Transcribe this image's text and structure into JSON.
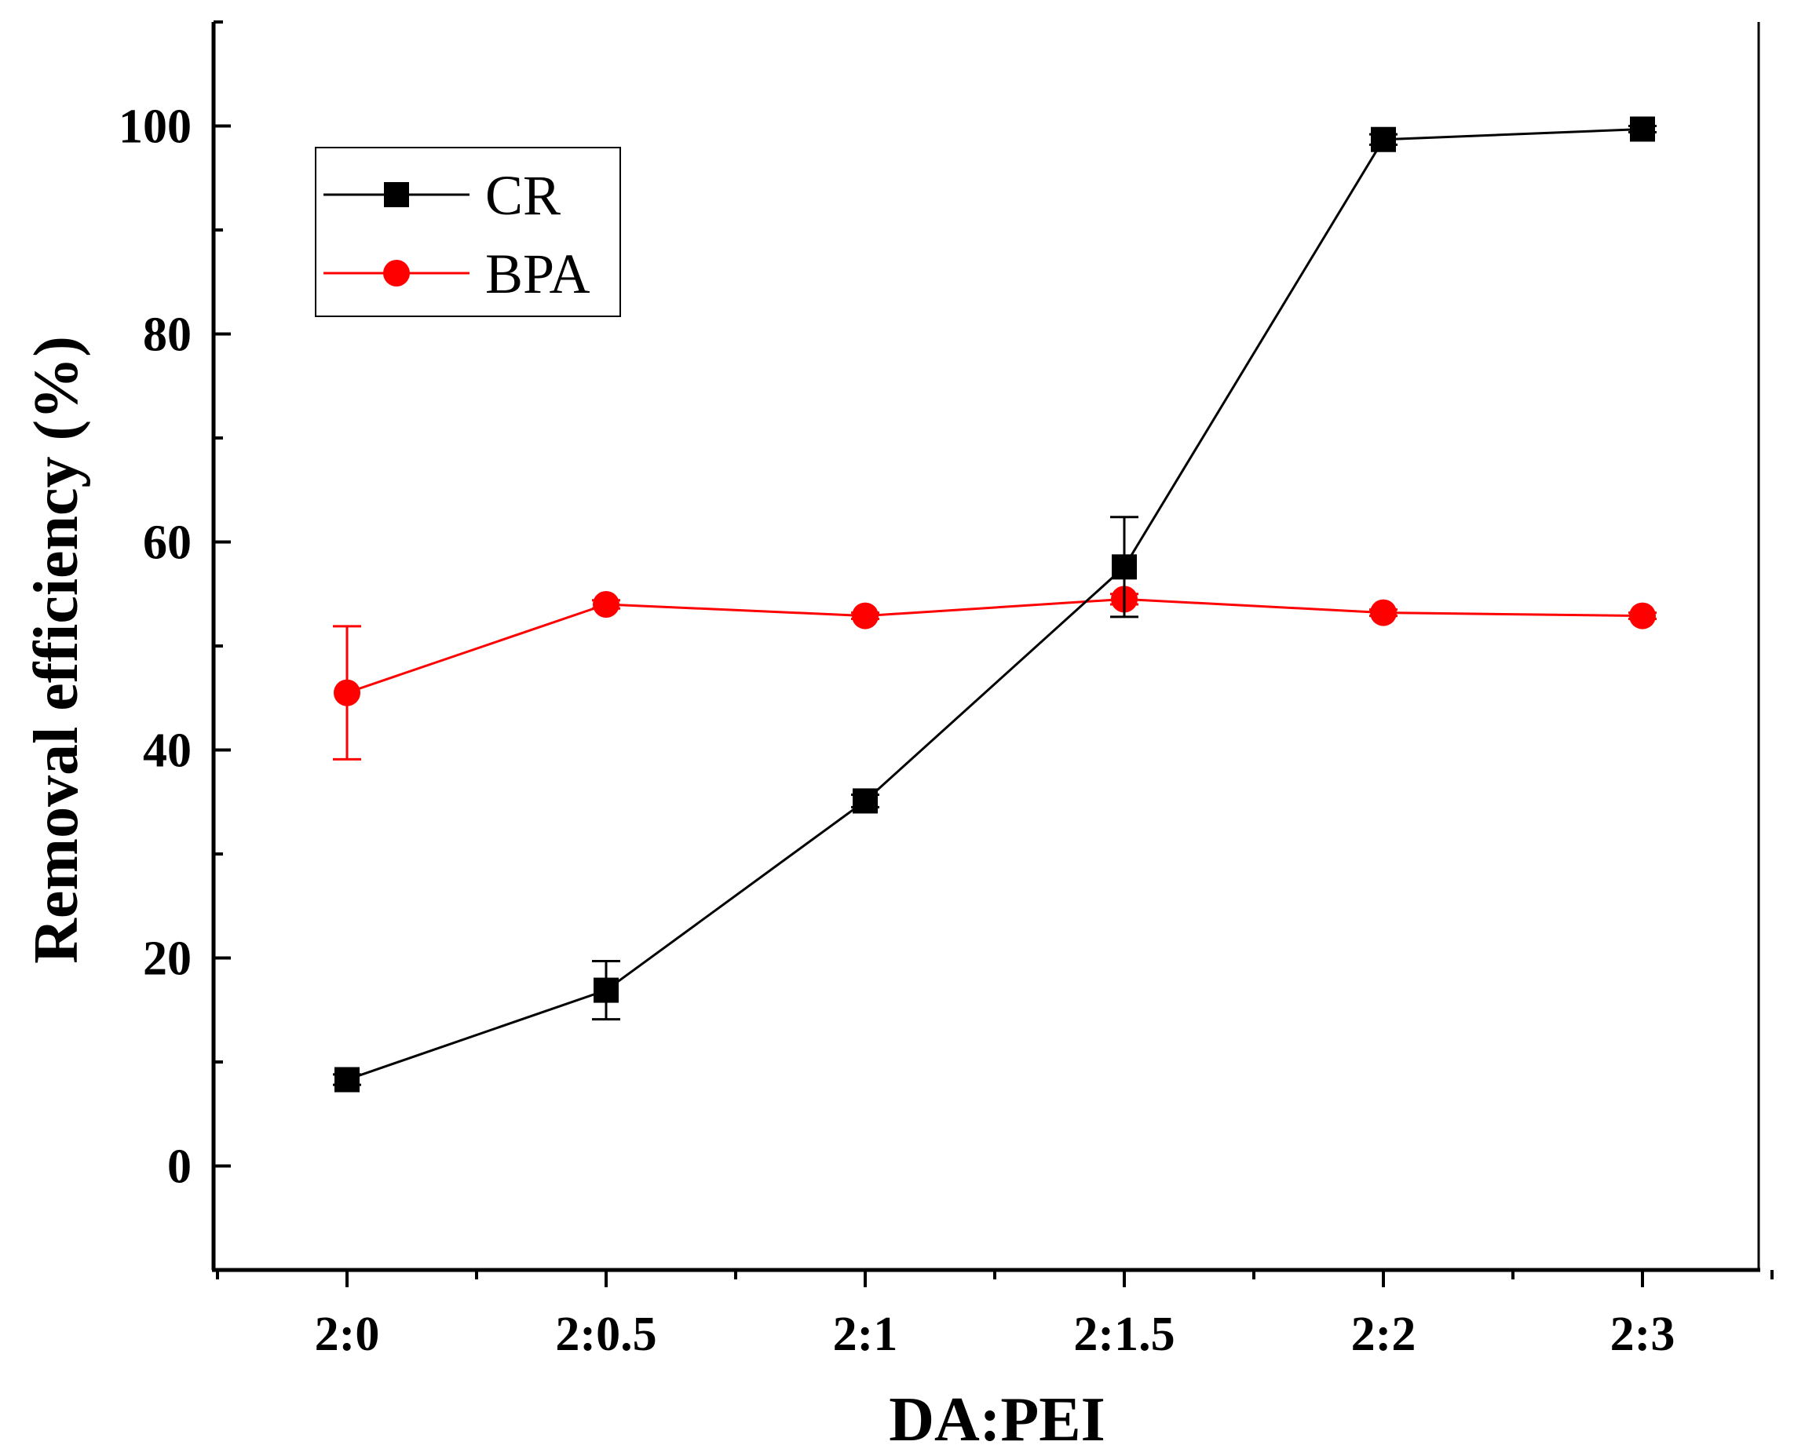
{
  "chart_data": {
    "type": "line",
    "title": "",
    "xlabel": "DA:PEI",
    "ylabel": "Removal efficiency (%)",
    "categories": [
      "2:0",
      "2:0.5",
      "2:1",
      "2:1.5",
      "2:2",
      "2:3"
    ],
    "ylim": [
      -10,
      110
    ],
    "yticks": [
      0,
      20,
      40,
      60,
      80,
      100
    ],
    "yticklabels": [
      "0",
      "20",
      "40",
      "60",
      "80",
      "100"
    ],
    "grid": false,
    "legend_position": "top-left",
    "series": [
      {
        "name": "CR",
        "color": "#000000",
        "marker": "square",
        "values": [
          8.3,
          16.9,
          35.1,
          57.6,
          98.7,
          99.7
        ],
        "errors": [
          0.5,
          2.8,
          0.6,
          4.8,
          0.5,
          0.3
        ]
      },
      {
        "name": "BPA",
        "color": "#ff0000",
        "marker": "circle",
        "values": [
          45.5,
          54.0,
          52.9,
          54.5,
          53.2,
          52.9
        ],
        "errors": [
          6.4,
          0.4,
          0.3,
          0.5,
          0.3,
          0.3
        ]
      }
    ]
  }
}
